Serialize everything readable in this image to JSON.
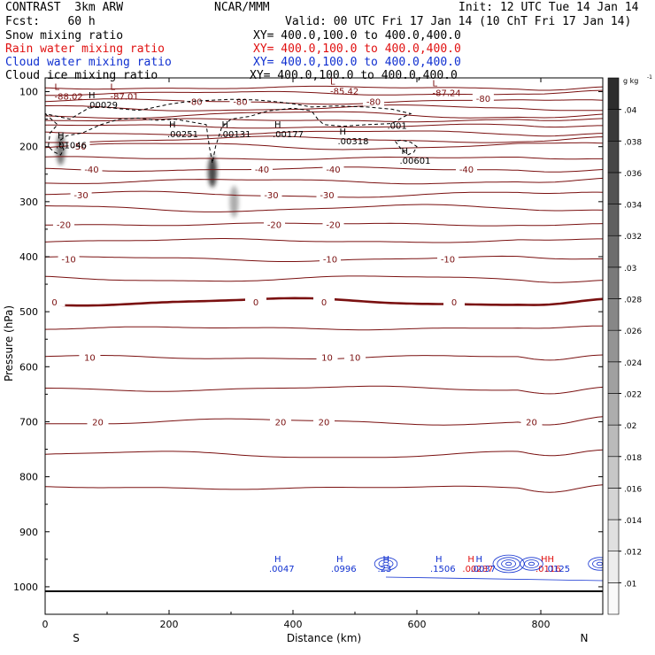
{
  "header": {
    "model": "CONTRAST  3km ARW",
    "center": "NCAR/MMM",
    "init": "Init: 12 UTC Tue 14 Jan 14",
    "fcst": "Fcst:    60 h",
    "valid": "Valid: 00 UTC Fri 17 Jan 14 (10 ChT Fri 17 Jan 14)"
  },
  "fields": [
    {
      "name": "Snow mixing ratio",
      "xy": "XY= 400.0,100.0 to 400.0,400.0",
      "color": "#000000"
    },
    {
      "name": "Rain water mixing ratio",
      "xy": "XY= 400.0,100.0 to 400.0,400.0",
      "color": "#e01010"
    },
    {
      "name": "Cloud water mixing ratio",
      "xy": "XY= 400.0,100.0 to 400.0,400.0",
      "color": "#1030d0"
    },
    {
      "name": "Cloud ice mixing ratio",
      "xy": "XY= 400.0,100.0 to 400.0,400.0",
      "color": "#000000"
    }
  ],
  "chart_data": {
    "type": "cross-section",
    "xlabel": "Distance (km)",
    "ylabel": "Pressure (hPa)",
    "xlim": [
      0,
      900
    ],
    "ylim": [
      1050,
      75
    ],
    "x_ticks": [
      0,
      200,
      400,
      600,
      800
    ],
    "y_ticks": [
      100,
      200,
      300,
      400,
      500,
      600,
      700,
      800,
      900,
      1000
    ],
    "x_end_labels": {
      "left": "S",
      "right": "N"
    },
    "colorbar": {
      "units": "g kg",
      "units_exp": "-1",
      "ticks": [
        ".01",
        ".012",
        ".014",
        ".016",
        ".018",
        ".02",
        ".022",
        ".024",
        ".026",
        ".028",
        ".03",
        ".032",
        ".034",
        ".036",
        ".038",
        ".04"
      ]
    },
    "temperature_contours": {
      "color": "#7a1010",
      "bold_value": 0,
      "levels": [
        {
          "p": 93,
          "value": -85
        },
        {
          "p": 103,
          "value": -85
        },
        {
          "p": 118,
          "value": -80
        },
        {
          "p": 130,
          "value": -75
        },
        {
          "p": 142,
          "value": -70
        },
        {
          "p": 152,
          "value": -70
        },
        {
          "p": 163,
          "value": -65
        },
        {
          "p": 175,
          "value": -60
        },
        {
          "p": 187,
          "value": -55
        },
        {
          "p": 199,
          "value": -50
        },
        {
          "p": 221,
          "value": -45
        },
        {
          "p": 241,
          "value": -40
        },
        {
          "p": 263,
          "value": -35
        },
        {
          "p": 287,
          "value": -30
        },
        {
          "p": 312,
          "value": -25
        },
        {
          "p": 341,
          "value": -20
        },
        {
          "p": 371,
          "value": -15
        },
        {
          "p": 404,
          "value": -10
        },
        {
          "p": 440,
          "value": -5
        },
        {
          "p": 482,
          "value": 0
        },
        {
          "p": 530,
          "value": 5
        },
        {
          "p": 583,
          "value": 10
        },
        {
          "p": 640,
          "value": 15
        },
        {
          "p": 700,
          "value": 20
        },
        {
          "p": 760,
          "value": 25
        },
        {
          "p": 820,
          "value": 30
        }
      ],
      "labels": [
        {
          "x": 242,
          "p": 118,
          "text": "-80"
        },
        {
          "x": 315,
          "p": 118,
          "text": "-80"
        },
        {
          "x": 530,
          "p": 118,
          "text": "-80"
        },
        {
          "x": 707,
          "p": 112,
          "text": "-80"
        },
        {
          "x": 55,
          "p": 199,
          "text": "-50"
        },
        {
          "x": 75,
          "p": 241,
          "text": "-40"
        },
        {
          "x": 350,
          "p": 241,
          "text": "-40"
        },
        {
          "x": 465,
          "p": 241,
          "text": "-40"
        },
        {
          "x": 680,
          "p": 241,
          "text": "-40"
        },
        {
          "x": 58,
          "p": 287,
          "text": "-30"
        },
        {
          "x": 365,
          "p": 287,
          "text": "-30"
        },
        {
          "x": 455,
          "p": 287,
          "text": "-30"
        },
        {
          "x": 30,
          "p": 341,
          "text": "-20"
        },
        {
          "x": 370,
          "p": 341,
          "text": "-20"
        },
        {
          "x": 465,
          "p": 341,
          "text": "-20"
        },
        {
          "x": 38,
          "p": 404,
          "text": "-10"
        },
        {
          "x": 460,
          "p": 404,
          "text": "-10"
        },
        {
          "x": 650,
          "p": 404,
          "text": "-10"
        },
        {
          "x": 15,
          "p": 482,
          "text": "0"
        },
        {
          "x": 340,
          "p": 482,
          "text": "0"
        },
        {
          "x": 450,
          "p": 482,
          "text": "0"
        },
        {
          "x": 660,
          "p": 482,
          "text": "0"
        },
        {
          "x": 72,
          "p": 583,
          "text": "10"
        },
        {
          "x": 455,
          "p": 583,
          "text": "10"
        },
        {
          "x": 500,
          "p": 583,
          "text": "10"
        },
        {
          "x": 85,
          "p": 700,
          "text": "20"
        },
        {
          "x": 380,
          "p": 700,
          "text": "20"
        },
        {
          "x": 450,
          "p": 700,
          "text": "20"
        },
        {
          "x": 785,
          "p": 700,
          "text": "20"
        }
      ],
      "extrema": [
        {
          "x": 15,
          "p": 97,
          "mark": "L",
          "value": "-88.02"
        },
        {
          "x": 105,
          "p": 97,
          "mark": "L",
          "value": "-87.01"
        },
        {
          "x": 460,
          "p": 87,
          "mark": "L",
          "value": "-85.42"
        },
        {
          "x": 625,
          "p": 90,
          "mark": "L",
          "value": "-87.24"
        }
      ]
    },
    "cloud_ice_contour": {
      "labels": [
        {
          "x": 70,
          "p": 112,
          "mark": "H",
          "value": ".00029"
        },
        {
          "x": 20,
          "p": 185,
          "mark": "H",
          "value": ".01046"
        },
        {
          "x": 200,
          "p": 165,
          "mark": "H",
          "value": ".00251"
        },
        {
          "x": 285,
          "p": 165,
          "mark": "H",
          "value": ".00131"
        },
        {
          "x": 370,
          "p": 165,
          "mark": "H",
          "value": ".00177"
        },
        {
          "x": 475,
          "p": 178,
          "mark": "H",
          "value": ".00318"
        },
        {
          "x": 555,
          "p": 150,
          "mark": "",
          "value": ".001"
        },
        {
          "x": 575,
          "p": 213,
          "mark": "H",
          "value": ".00601"
        }
      ]
    },
    "snow_shading": [
      {
        "x": 25,
        "p": 205,
        "intensity": 0.6
      },
      {
        "x": 270,
        "p": 245,
        "intensity": 0.95
      },
      {
        "x": 305,
        "p": 300,
        "intensity": 0.25
      }
    ],
    "low_level_maxima": [
      {
        "x": 370,
        "mark": "H",
        "value": ".0047",
        "color": "#1030d0"
      },
      {
        "x": 470,
        "mark": "H",
        "value": ".0996",
        "color": "#1030d0"
      },
      {
        "x": 545,
        "mark": "H",
        "value": ".23",
        "color": "#1030d0"
      },
      {
        "x": 630,
        "mark": "H",
        "value": ".1506",
        "color": "#1030d0"
      },
      {
        "x": 682,
        "mark": "H",
        "value": ".00287",
        "color": "#e01010"
      },
      {
        "x": 695,
        "mark": "H",
        "value": ".0037",
        "color": "#1030d0"
      },
      {
        "x": 800,
        "mark": "HH",
        "value": ".0116",
        "color": "#e01010"
      },
      {
        "x": 815,
        "mark": "",
        "value": ".0125",
        "color": "#1030d0"
      }
    ]
  }
}
